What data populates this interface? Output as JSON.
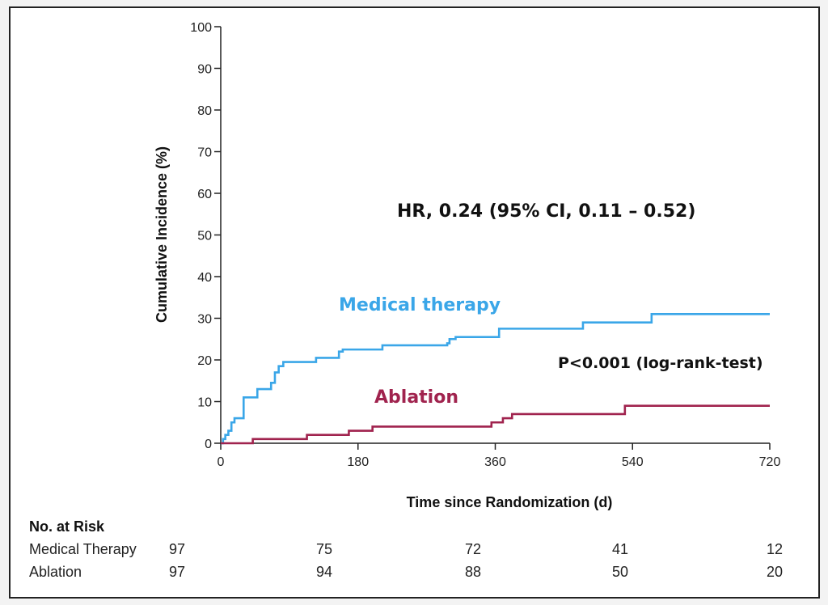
{
  "chart_data": {
    "type": "line",
    "title": "",
    "xlabel": "Time since Randomization (d)",
    "ylabel": "Cumulative Incidence (%)",
    "xlim": [
      0,
      720
    ],
    "ylim": [
      0,
      100
    ],
    "x_ticks": [
      0,
      180,
      360,
      540,
      720
    ],
    "y_ticks": [
      0,
      10,
      20,
      30,
      40,
      50,
      60,
      70,
      80,
      90,
      100
    ],
    "series": [
      {
        "name": "Medical therapy",
        "color": "#3aa6e8",
        "steps": [
          [
            0,
            0
          ],
          [
            3,
            1
          ],
          [
            6,
            2
          ],
          [
            10,
            3
          ],
          [
            14,
            5
          ],
          [
            18,
            6
          ],
          [
            30,
            11
          ],
          [
            48,
            13
          ],
          [
            66,
            14.5
          ],
          [
            71,
            17
          ],
          [
            76,
            18.5
          ],
          [
            82,
            19.5
          ],
          [
            122,
            19.5
          ],
          [
            125,
            20.5
          ],
          [
            148,
            20.5
          ],
          [
            155,
            22
          ],
          [
            160,
            22.5
          ],
          [
            212,
            23.5
          ],
          [
            297,
            24
          ],
          [
            300,
            25
          ],
          [
            308,
            25.5
          ],
          [
            365,
            27.5
          ],
          [
            475,
            29
          ],
          [
            565,
            31
          ],
          [
            720,
            31
          ]
        ]
      },
      {
        "name": "Ablation",
        "color": "#a0234e",
        "steps": [
          [
            0,
            0
          ],
          [
            42,
            1
          ],
          [
            113,
            2
          ],
          [
            168,
            3
          ],
          [
            199,
            4
          ],
          [
            355,
            5
          ],
          [
            370,
            6
          ],
          [
            382,
            7
          ],
          [
            530,
            9
          ],
          [
            720,
            9
          ]
        ]
      }
    ],
    "annotations": {
      "hr": "HR, 0.24 (95% CI, 0.11 – 0.52)",
      "p_value": "P<0.001 (log-rank-test)",
      "medical_label": "Medical therapy",
      "ablation_label": "Ablation"
    },
    "risk_table": {
      "title": "No. at Risk",
      "rows": [
        {
          "label": "Medical Therapy",
          "values": [
            97,
            75,
            72,
            41,
            12
          ]
        },
        {
          "label": "Ablation",
          "values": [
            97,
            94,
            88,
            50,
            20
          ]
        }
      ]
    }
  }
}
